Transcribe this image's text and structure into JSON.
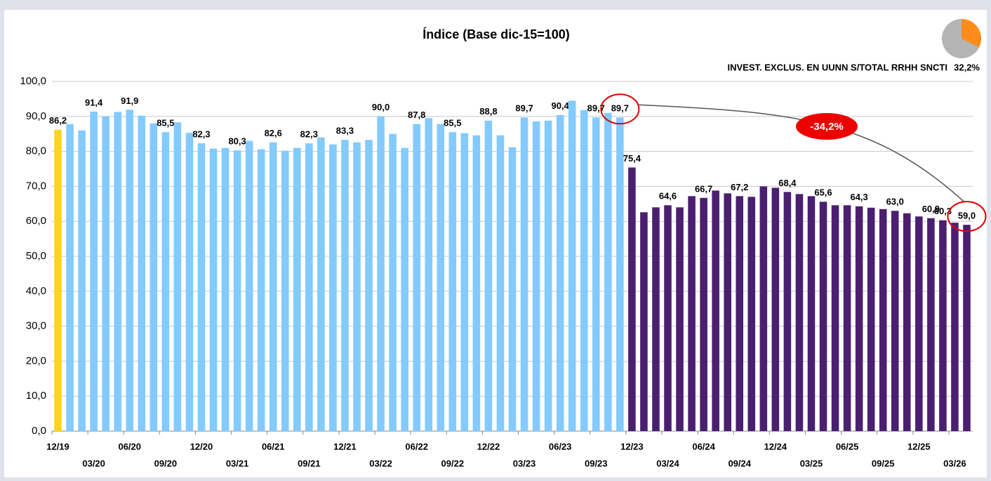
{
  "chart_data": {
    "type": "bar",
    "title": "Índice (Base dic-15=100)",
    "annotation": {
      "text": "INVEST. EXCLUS. EN UUNN S/TOTAL RRHH SNCTI",
      "share": {
        "value": 32.2,
        "label": "32,2%"
      }
    },
    "change_label": "-34,2%",
    "categories": [
      "12/19",
      null,
      null,
      "03/20",
      null,
      null,
      "06/20",
      null,
      null,
      "09/20",
      null,
      null,
      "12/20",
      null,
      null,
      "03/21",
      null,
      null,
      "06/21",
      null,
      null,
      "09/21",
      null,
      null,
      "12/21",
      null,
      null,
      "03/22",
      null,
      null,
      "06/22",
      null,
      null,
      "09/22",
      null,
      null,
      "12/22",
      null,
      null,
      "03/23",
      null,
      null,
      "06/23",
      null,
      null,
      "09/23",
      null,
      null,
      "12/23",
      null,
      null,
      "03/24",
      null,
      null,
      "06/24",
      null,
      null,
      "09/24",
      null,
      null,
      "12/24",
      null,
      null,
      "03/25",
      null,
      null,
      "06/25",
      null,
      null,
      "09/25",
      null,
      null,
      "12/25",
      null,
      null,
      "03/26",
      null
    ],
    "values": [
      86.2,
      87.8,
      86.0,
      91.4,
      90.0,
      91.3,
      91.9,
      90.2,
      88.0,
      85.5,
      88.3,
      85.3,
      82.3,
      80.8,
      81.0,
      80.3,
      83.0,
      80.6,
      82.6,
      80.2,
      81.0,
      82.3,
      84.0,
      82.0,
      83.3,
      82.6,
      83.3,
      90.0,
      85.0,
      81.0,
      87.8,
      89.5,
      87.8,
      85.5,
      85.2,
      84.6,
      88.8,
      84.6,
      81.2,
      89.7,
      88.6,
      88.8,
      90.4,
      94.5,
      91.8,
      89.7,
      91.0,
      89.7,
      75.4,
      62.6,
      64.0,
      64.6,
      64.0,
      67.2,
      66.7,
      68.8,
      68.0,
      67.2,
      67.0,
      70.0,
      69.6,
      68.4,
      67.8,
      67.2,
      65.6,
      64.6,
      64.6,
      64.3,
      63.9,
      63.5,
      63.0,
      62.3,
      61.4,
      60.9,
      60.3,
      59.6,
      59.0
    ],
    "value_labels": [
      "86,2",
      null,
      null,
      "91,4",
      null,
      null,
      "91,9",
      null,
      null,
      "85,5",
      null,
      null,
      "82,3",
      null,
      null,
      "80,3",
      null,
      null,
      "82,6",
      null,
      null,
      "82,3",
      null,
      null,
      "83,3",
      null,
      null,
      "90,0",
      null,
      null,
      "87,8",
      null,
      null,
      "85,5",
      null,
      null,
      "88,8",
      null,
      null,
      "89,7",
      null,
      null,
      "90,4",
      null,
      null,
      "89,7",
      null,
      "89,7",
      "75,4",
      null,
      null,
      "64,6",
      null,
      null,
      "66,7",
      null,
      null,
      "67,2",
      null,
      null,
      null,
      "68,4",
      null,
      null,
      "65,6",
      null,
      null,
      "64,3",
      null,
      null,
      "63,0",
      null,
      null,
      "60,9",
      "60,3",
      null,
      "59,0"
    ],
    "colors": [
      "#ffd320",
      "#83caff",
      "#83caff",
      "#83caff",
      "#83caff",
      "#83caff",
      "#83caff",
      "#83caff",
      "#83caff",
      "#83caff",
      "#83caff",
      "#83caff",
      "#83caff",
      "#83caff",
      "#83caff",
      "#83caff",
      "#83caff",
      "#83caff",
      "#83caff",
      "#83caff",
      "#83caff",
      "#83caff",
      "#83caff",
      "#83caff",
      "#83caff",
      "#83caff",
      "#83caff",
      "#83caff",
      "#83caff",
      "#83caff",
      "#83caff",
      "#83caff",
      "#83caff",
      "#83caff",
      "#83caff",
      "#83caff",
      "#83caff",
      "#83caff",
      "#83caff",
      "#83caff",
      "#83caff",
      "#83caff",
      "#83caff",
      "#83caff",
      "#83caff",
      "#83caff",
      "#83caff",
      "#83caff",
      "#4b1f6f",
      "#4b1f6f",
      "#4b1f6f",
      "#4b1f6f",
      "#4b1f6f",
      "#4b1f6f",
      "#4b1f6f",
      "#4b1f6f",
      "#4b1f6f",
      "#4b1f6f",
      "#4b1f6f",
      "#4b1f6f",
      "#4b1f6f",
      "#4b1f6f",
      "#4b1f6f",
      "#4b1f6f",
      "#4b1f6f",
      "#4b1f6f",
      "#4b1f6f",
      "#4b1f6f",
      "#4b1f6f",
      "#4b1f6f",
      "#4b1f6f",
      "#4b1f6f",
      "#4b1f6f",
      "#4b1f6f",
      "#4b1f6f",
      "#4b1f6f",
      "#4b1f6f"
    ],
    "ylim": [
      0,
      100
    ],
    "yticks": [
      {
        "value": 0,
        "label": "0,0"
      },
      {
        "value": 10,
        "label": "10,0"
      },
      {
        "value": 20,
        "label": "20,0"
      },
      {
        "value": 30,
        "label": "30,0"
      },
      {
        "value": 40,
        "label": "40,0"
      },
      {
        "value": 50,
        "label": "50,0"
      },
      {
        "value": 60,
        "label": "60,0"
      },
      {
        "value": 70,
        "label": "70,0"
      },
      {
        "value": 80,
        "label": "80,0"
      },
      {
        "value": 90,
        "label": "90,0"
      },
      {
        "value": 100,
        "label": "100,0"
      }
    ],
    "grid": true
  }
}
